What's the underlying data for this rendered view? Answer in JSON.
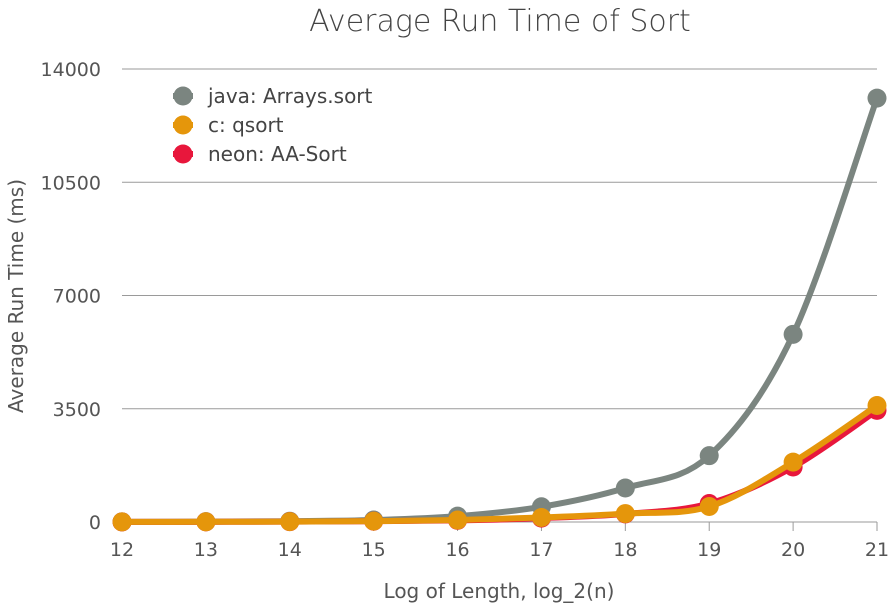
{
  "chart_data": {
    "type": "line",
    "title": "Average Run Time of Sort",
    "xlabel": "Log of Length, log_2(n)",
    "ylabel": "Average Run Time (ms)",
    "x": [
      12,
      13,
      14,
      15,
      16,
      17,
      18,
      19,
      20,
      21
    ],
    "x_tick_labels": [
      "12",
      "13",
      "14",
      "15",
      "16",
      "17",
      "18",
      "19",
      "20",
      "21"
    ],
    "y_ticks": [
      0,
      3500,
      7000,
      10500,
      14000
    ],
    "y_tick_labels": [
      "0",
      "3500",
      "7000",
      "10500",
      "14000"
    ],
    "ylim": [
      0,
      14000
    ],
    "grid": true,
    "legend_position": "top-left",
    "smooth": true,
    "series": [
      {
        "name": "java: Arrays.sort",
        "color": "#7b8580",
        "values": [
          5,
          10,
          25,
          60,
          180,
          470,
          1050,
          2050,
          5800,
          13100
        ]
      },
      {
        "name": "neon: AA-Sort",
        "color": "#e8173c",
        "values": [
          2,
          5,
          10,
          25,
          50,
          120,
          250,
          570,
          1700,
          3450
        ]
      },
      {
        "name": "c: qsort",
        "color": "#e5960b",
        "values": [
          3,
          6,
          12,
          28,
          60,
          140,
          260,
          480,
          1850,
          3600
        ]
      }
    ],
    "legend_order": [
      0,
      2,
      1
    ]
  }
}
